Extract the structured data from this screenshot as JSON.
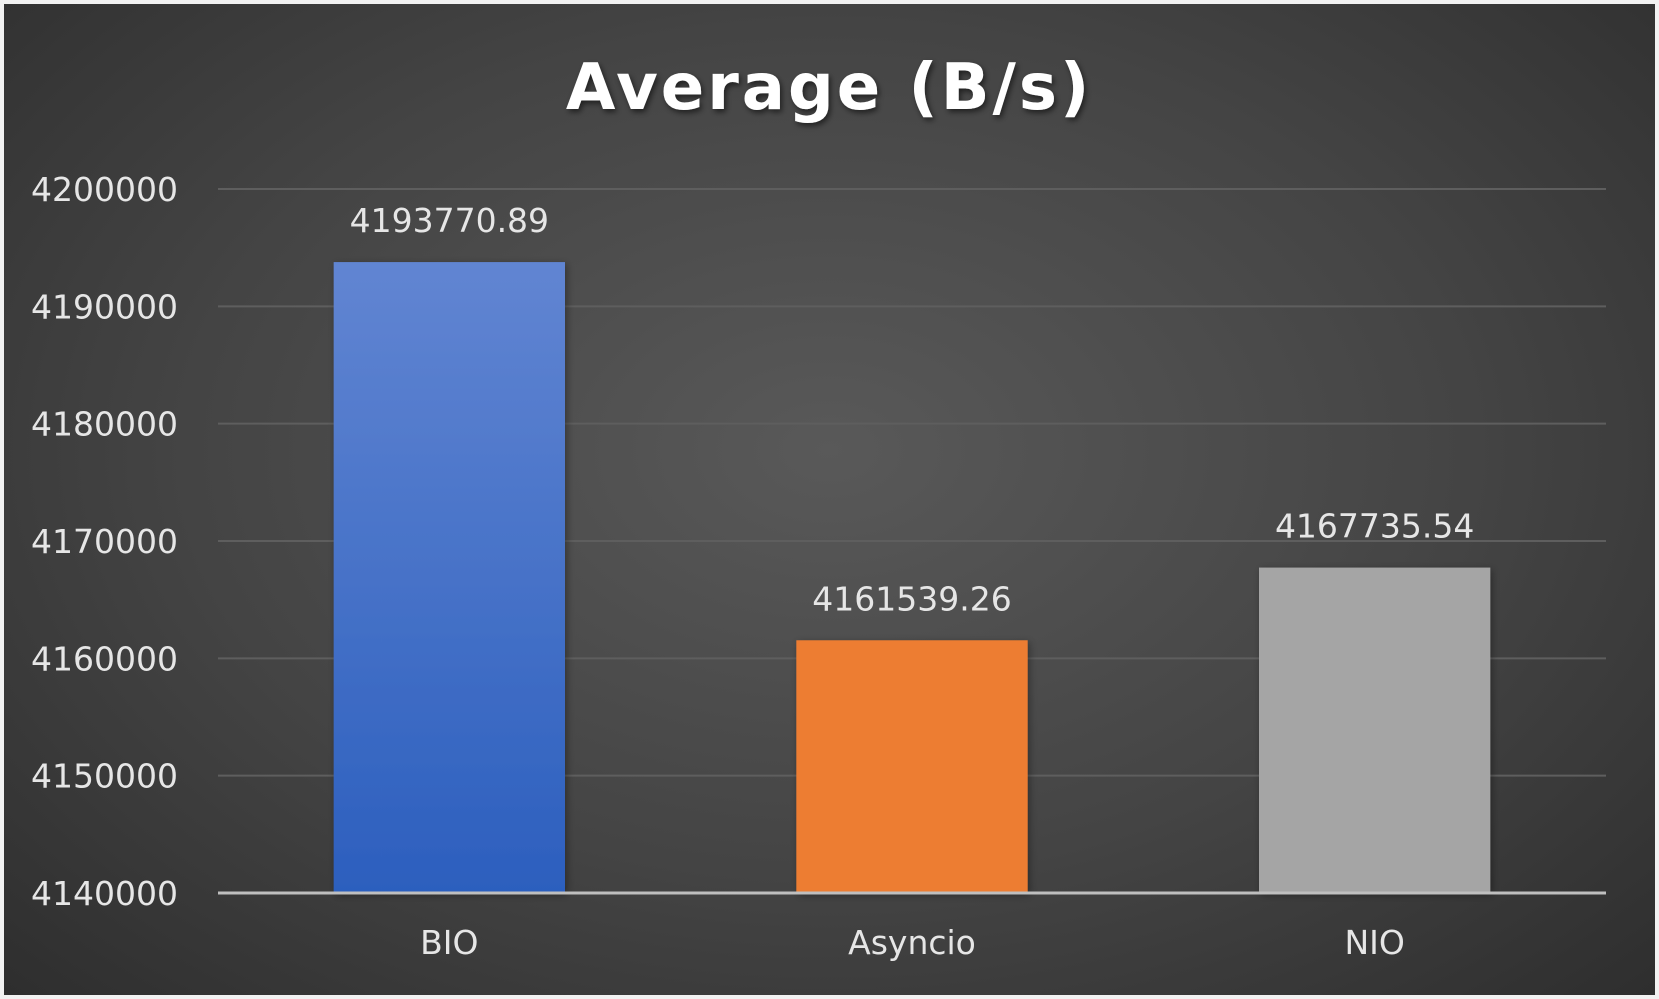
{
  "chart_data": {
    "type": "bar",
    "title": "Average (B/s)",
    "xlabel": "",
    "ylabel": "",
    "categories": [
      "BIO",
      "Asyncio",
      "NIO"
    ],
    "values": [
      4193770.89,
      4161539.26,
      4167735.54
    ],
    "value_labels": [
      "4193770.89",
      "4161539.26",
      "4167735.54"
    ],
    "colors": [
      "#4472c4",
      "#ed7d31",
      "#a5a5a5"
    ],
    "ylim": [
      4140000,
      4200000
    ],
    "yticks": [
      4140000,
      4150000,
      4160000,
      4170000,
      4180000,
      4190000,
      4200000
    ],
    "ytick_labels": [
      "4140000",
      "4150000",
      "4160000",
      "4170000",
      "4180000",
      "4190000",
      "4200000"
    ],
    "grid": true,
    "legend": "none",
    "background": "#404040",
    "gridline_color": "#5e5e5e",
    "axis_line_color": "#bfbfbf"
  }
}
